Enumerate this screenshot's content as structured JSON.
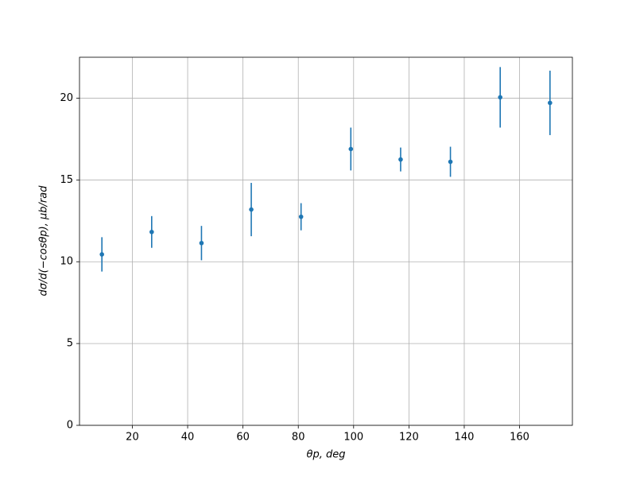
{
  "chart_data": {
    "type": "errorbar",
    "x_label": "θp, deg",
    "y_label": "dσ/d(−cosθp), μb/rad",
    "x": [
      9,
      27,
      45,
      63,
      81,
      99,
      117,
      135,
      153,
      171
    ],
    "values": [
      10.45,
      11.82,
      11.14,
      13.19,
      12.75,
      16.89,
      16.25,
      16.11,
      20.05,
      19.71
    ],
    "errors": [
      1.05,
      0.97,
      1.05,
      1.63,
      0.83,
      1.31,
      0.73,
      0.92,
      1.85,
      1.97
    ],
    "color": "#1f77b4",
    "xlim": [
      0.9,
      179.1
    ],
    "ylim": [
      0,
      22.5
    ],
    "xticks": [
      20,
      40,
      60,
      80,
      100,
      120,
      140,
      160
    ],
    "yticks": [
      0,
      5,
      10,
      15,
      20
    ],
    "grid": true
  }
}
